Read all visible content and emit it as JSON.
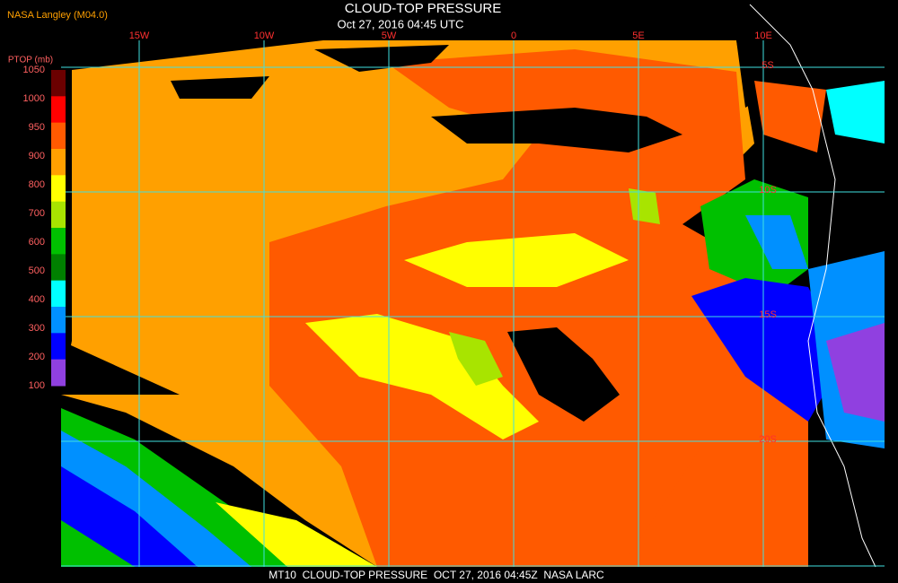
{
  "header": {
    "source": "NASA Langley (M04.0)",
    "title": "CLOUD-TOP PRESSURE",
    "subtitle": "Oct 27, 2016 04:45 UTC"
  },
  "colorbar": {
    "title": "PTOP (mb)",
    "ticks": [
      1050,
      1000,
      950,
      900,
      800,
      700,
      600,
      500,
      400,
      300,
      200,
      100
    ],
    "colors": [
      "#6b0000",
      "#ff0000",
      "#ff5a00",
      "#ffa000",
      "#ffff00",
      "#a8e400",
      "#00c000",
      "#008000",
      "#00ffff",
      "#0090ff",
      "#0000ff",
      "#9040e0"
    ]
  },
  "grid": {
    "longitudes": [
      "15W",
      "10W",
      "5W",
      "0",
      "5E",
      "10E"
    ],
    "latitudes": [
      "5S",
      "10S",
      "15S",
      "20S"
    ]
  },
  "footer": "MT10  CLOUD-TOP PRESSURE  OCT 27, 2016 04:45Z  NASA LARC"
}
